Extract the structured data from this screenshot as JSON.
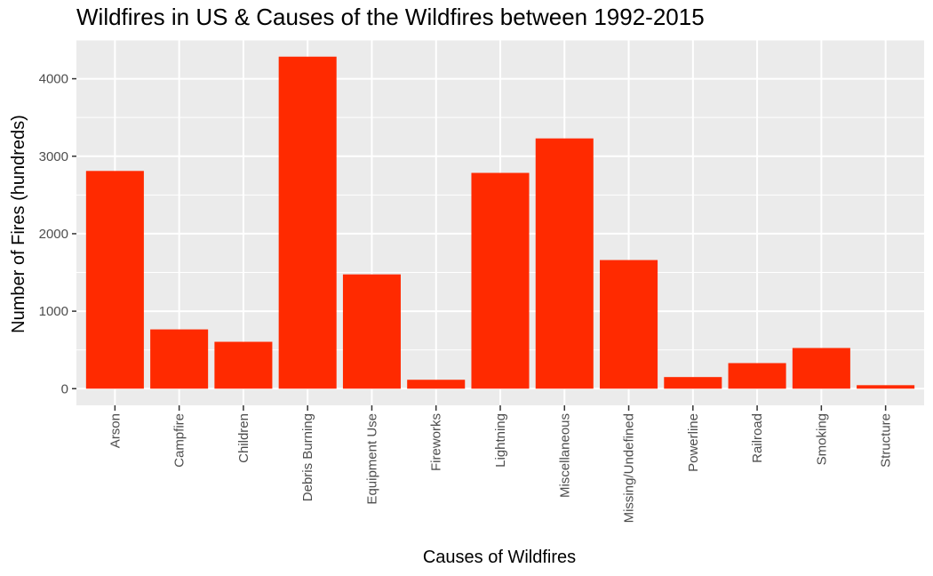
{
  "chart_data": {
    "type": "bar",
    "title": "Wildfires in US & Causes of the Wildfires between 1992-2015",
    "xlabel": "Causes of Wildfires",
    "ylabel": "Number of Fires (hundreds)",
    "categories": [
      "Arson",
      "Campfire",
      "Children",
      "Debris Burning",
      "Equipment Use",
      "Fireworks",
      "Lightning",
      "Miscellaneous",
      "Missing/Undefined",
      "Powerline",
      "Railroad",
      "Smoking",
      "Structure"
    ],
    "values": [
      2810,
      765,
      605,
      4285,
      1475,
      115,
      2785,
      3230,
      1660,
      150,
      330,
      525,
      45
    ],
    "yticks": [
      0,
      1000,
      2000,
      3000,
      4000
    ],
    "ytick_labels": [
      "0",
      "1000",
      "2000",
      "3000",
      "4000"
    ],
    "ylim": [
      -215,
      4500
    ],
    "bar_color": "#FF2A00",
    "panel_color": "#EBEBEB",
    "grid_color": "#FFFFFF",
    "grid": true,
    "legend": "none"
  }
}
